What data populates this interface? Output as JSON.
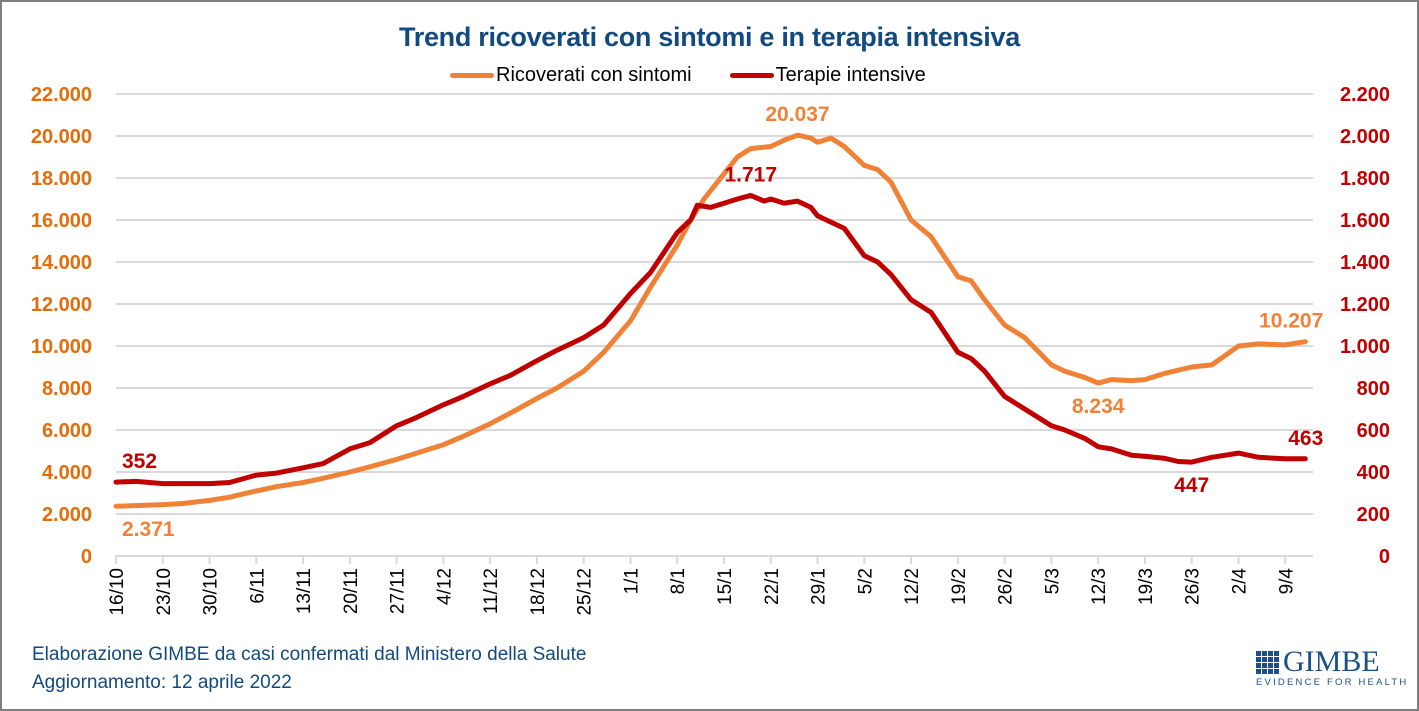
{
  "chart_data": {
    "type": "line",
    "title": "Trend ricoverati con sintomi e in terapia intensiva",
    "legend_position": "top-center",
    "x_tick_labels": [
      "16/10",
      "23/10",
      "30/10",
      "6/11",
      "13/11",
      "20/11",
      "27/11",
      "4/12",
      "11/12",
      "18/12",
      "25/12",
      "1/1",
      "8/1",
      "15/1",
      "22/1",
      "29/1",
      "5/2",
      "12/2",
      "19/2",
      "26/2",
      "5/3",
      "12/3",
      "19/3",
      "26/3",
      "2/4",
      "9/4"
    ],
    "x_unit": "days since 16/10",
    "x_range": [
      0,
      178
    ],
    "y_left": {
      "range": [
        0,
        22000
      ],
      "step": 2000,
      "tick_labels": [
        "0",
        "2.000",
        "4.000",
        "6.000",
        "8.000",
        "10.000",
        "12.000",
        "14.000",
        "16.000",
        "18.000",
        "20.000",
        "22.000"
      ],
      "color": "#e46c0a"
    },
    "y_right": {
      "range": [
        0,
        2200
      ],
      "step": 200,
      "tick_labels": [
        "0",
        "200",
        "400",
        "600",
        "800",
        "1.000",
        "1.200",
        "1.400",
        "1.600",
        "1.800",
        "2.000",
        "2.200"
      ],
      "color": "#c00000"
    },
    "grid": true,
    "series": [
      {
        "name": "Ricoverati con sintomi",
        "axis": "left",
        "color": "#f08237",
        "x": [
          0,
          3,
          7,
          10,
          14,
          17,
          21,
          24,
          28,
          31,
          35,
          38,
          42,
          45,
          49,
          52,
          56,
          59,
          63,
          66,
          70,
          73,
          77,
          80,
          84,
          86,
          88,
          91,
          93,
          95,
          98,
          100,
          102,
          104,
          105,
          107,
          109,
          112,
          114,
          116,
          119,
          122,
          126,
          128,
          130,
          133,
          136,
          140,
          142,
          145,
          147,
          149,
          152,
          154,
          157,
          161,
          164,
          168,
          171,
          175,
          178
        ],
        "values": [
          2371,
          2400,
          2450,
          2500,
          2650,
          2800,
          3100,
          3300,
          3500,
          3700,
          4000,
          4250,
          4600,
          4900,
          5300,
          5700,
          6300,
          6800,
          7500,
          8000,
          8800,
          9700,
          11200,
          12800,
          14800,
          16000,
          17000,
          18200,
          19000,
          19400,
          19500,
          19800,
          20037,
          19900,
          19700,
          19900,
          19500,
          18600,
          18400,
          17800,
          16000,
          15200,
          13300,
          13100,
          12200,
          11000,
          10400,
          9100,
          8800,
          8500,
          8234,
          8400,
          8350,
          8400,
          8700,
          9000,
          9100,
          10000,
          10100,
          10050,
          10207
        ],
        "annotations": [
          {
            "label": "2.371",
            "x": 0,
            "value": 2371,
            "position": "below"
          },
          {
            "label": "20.037",
            "x": 102,
            "value": 20037,
            "position": "above"
          },
          {
            "label": "8.234",
            "x": 147,
            "value": 8234,
            "position": "below"
          },
          {
            "label": "10.207",
            "x": 178,
            "value": 10207,
            "position": "above"
          }
        ]
      },
      {
        "name": "Terapie intensive",
        "axis": "right",
        "color": "#c00000",
        "x": [
          0,
          3,
          7,
          10,
          14,
          17,
          21,
          24,
          28,
          31,
          35,
          38,
          42,
          45,
          49,
          52,
          56,
          59,
          63,
          66,
          70,
          73,
          77,
          80,
          84,
          86,
          87,
          89,
          91,
          93,
          95,
          97,
          98,
          100,
          102,
          104,
          105,
          107,
          109,
          112,
          114,
          116,
          119,
          122,
          126,
          128,
          130,
          133,
          136,
          140,
          142,
          145,
          147,
          149,
          152,
          154,
          157,
          159,
          161,
          164,
          168,
          171,
          175,
          178
        ],
        "values": [
          352,
          355,
          345,
          345,
          345,
          350,
          385,
          395,
          420,
          440,
          510,
          540,
          620,
          660,
          720,
          760,
          820,
          860,
          930,
          980,
          1040,
          1100,
          1250,
          1350,
          1540,
          1600,
          1670,
          1660,
          1680,
          1700,
          1717,
          1690,
          1700,
          1680,
          1690,
          1660,
          1620,
          1590,
          1560,
          1430,
          1400,
          1340,
          1220,
          1160,
          970,
          940,
          880,
          760,
          700,
          620,
          600,
          560,
          520,
          510,
          480,
          475,
          465,
          450,
          447,
          470,
          490,
          470,
          463,
          463
        ],
        "annotations": [
          {
            "label": "352",
            "x": 0,
            "value": 352,
            "position": "above"
          },
          {
            "label": "1.717",
            "x": 95,
            "value": 1717,
            "position": "above"
          },
          {
            "label": "447",
            "x": 161,
            "value": 447,
            "position": "below"
          },
          {
            "label": "463",
            "x": 178,
            "value": 463,
            "position": "above"
          }
        ]
      }
    ]
  },
  "legend": {
    "items": [
      {
        "label": "Ricoverati con sintomi",
        "color": "#f08237"
      },
      {
        "label": "Terapie intensive",
        "color": "#c00000"
      }
    ]
  },
  "footer": {
    "source": "Elaborazione GIMBE da casi confermati dal Ministero della Salute",
    "updated": "Aggiornamento: 12 aprile 2022"
  },
  "logo": {
    "name": "GIMBE",
    "tagline": "EVIDENCE FOR HEALTH"
  }
}
